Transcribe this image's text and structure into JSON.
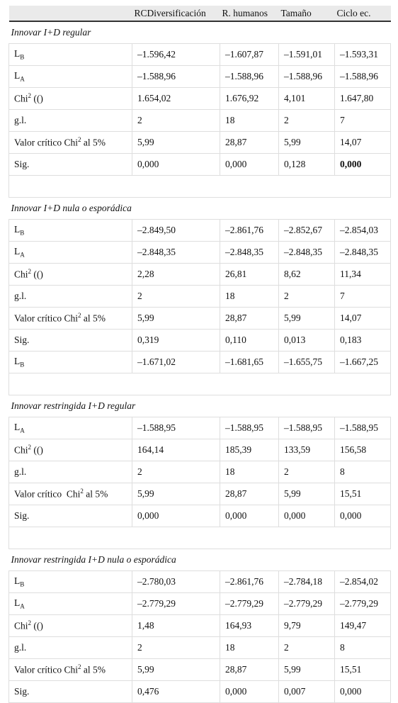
{
  "table": {
    "header": [
      "RCDiversificación",
      "R. humanos",
      "Tamaño",
      "Ciclo ec."
    ],
    "emphasis": {
      "section": 0,
      "row": 5,
      "column": 3
    },
    "sections": [
      {
        "title": "Innovar I+D regular",
        "rows": [
          {
            "label": {
              "text": "L",
              "sub": "B"
            },
            "cells": [
              "–1.596,42",
              "–1.607,87",
              "–1.591,01",
              "–1.593,31"
            ]
          },
          {
            "label": {
              "text": "L",
              "sub": "A"
            },
            "cells": [
              "–1.588,96",
              "–1.588,96",
              "–1.588,96",
              "–1.588,96"
            ]
          },
          {
            "label": {
              "text": "Chi",
              "sup": "2",
              "after": " (()"
            },
            "cells": [
              "1.654,02",
              "1.676,92",
              "4,101",
              "1.647,80"
            ]
          },
          {
            "label": {
              "text": "g.l."
            },
            "cells": [
              "2",
              "18",
              "2",
              "7"
            ]
          },
          {
            "label": {
              "text": "Valor crítico Chi",
              "sup": "2",
              "after": " al 5%"
            },
            "cells": [
              "5,99",
              "28,87",
              "5,99",
              "14,07"
            ]
          },
          {
            "label": {
              "text": "Sig."
            },
            "cells": [
              "0,000",
              "0,000",
              "0,128",
              "0,000"
            ]
          }
        ]
      },
      {
        "title": "Innovar I+D nula o esporádica",
        "rows": [
          {
            "label": {
              "text": "L",
              "sub": "B"
            },
            "cells": [
              "–2.849,50",
              "–2.861,76",
              "–2.852,67",
              "–2.854,03"
            ]
          },
          {
            "label": {
              "text": "L",
              "sub": "A"
            },
            "cells": [
              "–2.848,35",
              "–2.848,35",
              "–2.848,35",
              "–2.848,35"
            ]
          },
          {
            "label": {
              "text": "Chi",
              "sup": "2",
              "after": " (()"
            },
            "cells": [
              "2,28",
              "26,81",
              "8,62",
              "11,34"
            ]
          },
          {
            "label": {
              "text": "g.l."
            },
            "cells": [
              "2",
              "18",
              "2",
              "7"
            ]
          },
          {
            "label": {
              "text": "Valor crítico Chi",
              "sup": "2",
              "after": " al 5%"
            },
            "cells": [
              "5,99",
              "28,87",
              "5,99",
              "14,07"
            ]
          },
          {
            "label": {
              "text": "Sig."
            },
            "cells": [
              "0,319",
              "0,110",
              "0,013",
              "0,183"
            ]
          },
          {
            "label": {
              "text": "L",
              "sub": "B"
            },
            "cells": [
              "–1.671,02",
              "–1.681,65",
              "–1.655,75",
              "–1.667,25"
            ]
          }
        ]
      },
      {
        "title": "Innovar restringida I+D regular",
        "rows": [
          {
            "label": {
              "text": "L",
              "sub": "A"
            },
            "cells": [
              "–1.588,95",
              "–1.588,95",
              "–1.588,95",
              "–1.588,95"
            ]
          },
          {
            "label": {
              "text": "Chi",
              "sup": "2",
              "after": " (()"
            },
            "cells": [
              "164,14",
              "185,39",
              "133,59",
              "156,58"
            ]
          },
          {
            "label": {
              "text": "g.l."
            },
            "cells": [
              "2",
              "18",
              "2",
              "8"
            ]
          },
          {
            "label": {
              "text": "Valor crítico  Chi",
              "sup": "2",
              "after": " al 5%"
            },
            "cells": [
              "5,99",
              "28,87",
              "5,99",
              "15,51"
            ]
          },
          {
            "label": {
              "text": "Sig."
            },
            "cells": [
              "0,000",
              "0,000",
              "0,000",
              "0,000"
            ]
          }
        ]
      },
      {
        "title": "Innovar restringida I+D nula o esporádica",
        "rows": [
          {
            "label": {
              "text": "L",
              "sub": "B"
            },
            "cells": [
              "–2.780,03",
              "–2.861,76",
              "–2.784,18",
              "–2.854,02"
            ]
          },
          {
            "label": {
              "text": "L",
              "sub": "A"
            },
            "cells": [
              "–2.779,29",
              "–2.779,29",
              "–2.779,29",
              "–2.779,29"
            ]
          },
          {
            "label": {
              "text": "Chi",
              "sup": "2",
              "after": " (()"
            },
            "cells": [
              "1,48",
              "164,93",
              "9,79",
              "149,47"
            ]
          },
          {
            "label": {
              "text": "g.l."
            },
            "cells": [
              "2",
              "18",
              "2",
              "8"
            ]
          },
          {
            "label": {
              "text": "Valor crítico Chi",
              "sup": "2",
              "after": " al 5%"
            },
            "cells": [
              "5,99",
              "28,87",
              "5,99",
              "15,51"
            ]
          },
          {
            "label": {
              "text": "Sig."
            },
            "cells": [
              "0,476",
              "0,000",
              "0,007",
              "0,000"
            ]
          }
        ]
      }
    ]
  }
}
